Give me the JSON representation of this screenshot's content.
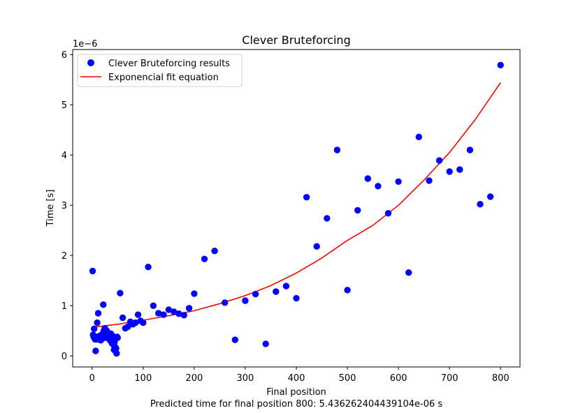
{
  "chart_data": {
    "type": "scatter",
    "title": "Clever Bruteforcing",
    "xlabel": "Final position",
    "ylabel": "Time [s]",
    "y_offset_label": "1e−6",
    "footnote": "Predicted time for final position 800: 5.436262404439104e-06 s",
    "xlim": [
      -38,
      838
    ],
    "ylim": [
      -0.22,
      6.1
    ],
    "xticks": [
      0,
      100,
      200,
      300,
      400,
      500,
      600,
      700,
      800
    ],
    "yticks": [
      0,
      1,
      2,
      3,
      4,
      5,
      6
    ],
    "grid": false,
    "legend_position": "top-left",
    "colors": {
      "points": "#0000ff",
      "fit": "#ff0000"
    },
    "series": [
      {
        "name": "Clever Bruteforcing results",
        "kind": "scatter",
        "unit_scale": "1e-6",
        "x": [
          1,
          2,
          3,
          4,
          5,
          6,
          7,
          8,
          9,
          10,
          11,
          12,
          13,
          14,
          15,
          16,
          17,
          18,
          19,
          20,
          21,
          22,
          23,
          24,
          25,
          26,
          27,
          28,
          29,
          30,
          31,
          32,
          33,
          34,
          35,
          36,
          37,
          38,
          39,
          40,
          41,
          42,
          43,
          44,
          45,
          46,
          47,
          48,
          49,
          50,
          55,
          60,
          65,
          70,
          75,
          80,
          85,
          90,
          95,
          100,
          110,
          120,
          130,
          140,
          150,
          160,
          170,
          180,
          190,
          200,
          220,
          240,
          260,
          280,
          300,
          320,
          340,
          360,
          380,
          400,
          420,
          440,
          460,
          480,
          500,
          520,
          540,
          560,
          580,
          600,
          620,
          640,
          660,
          680,
          700,
          720,
          740,
          760,
          780,
          800
        ],
        "y": [
          1.69,
          0.42,
          0.38,
          0.54,
          0.35,
          0.33,
          0.1,
          0.38,
          0.33,
          0.66,
          0.34,
          0.85,
          0.38,
          0.35,
          0.4,
          0.33,
          0.31,
          0.38,
          0.4,
          0.42,
          0.45,
          1.02,
          0.5,
          0.36,
          0.55,
          0.48,
          0.44,
          0.4,
          0.5,
          0.38,
          0.42,
          0.35,
          0.38,
          0.4,
          0.32,
          0.3,
          0.44,
          0.28,
          0.25,
          0.4,
          0.35,
          0.22,
          0.12,
          0.28,
          0.18,
          0.13,
          0.15,
          0.05,
          0.38,
          0.36,
          1.25,
          0.76,
          0.55,
          0.58,
          0.68,
          0.63,
          0.66,
          0.82,
          0.7,
          0.66,
          1.77,
          1.0,
          0.85,
          0.82,
          0.92,
          0.88,
          0.84,
          0.81,
          0.95,
          1.24,
          1.93,
          2.09,
          1.06,
          0.32,
          1.1,
          1.23,
          0.24,
          1.28,
          1.39,
          1.15,
          3.16,
          2.18,
          2.74,
          4.1,
          1.31,
          2.9,
          3.53,
          3.38,
          2.84,
          3.47,
          1.66,
          4.36,
          3.49,
          3.89,
          3.67,
          3.71,
          4.1,
          3.02,
          3.17,
          5.79
        ]
      },
      {
        "name": "Exponencial fit equation",
        "kind": "line",
        "unit_scale": "1e-6",
        "x": [
          1,
          50,
          100,
          150,
          200,
          250,
          300,
          350,
          400,
          450,
          500,
          550,
          600,
          650,
          700,
          750,
          800
        ],
        "y": [
          0.57,
          0.63,
          0.71,
          0.8,
          0.9,
          1.04,
          1.2,
          1.4,
          1.65,
          1.95,
          2.3,
          2.6,
          3.0,
          3.5,
          4.05,
          4.7,
          5.44
        ]
      }
    ]
  }
}
